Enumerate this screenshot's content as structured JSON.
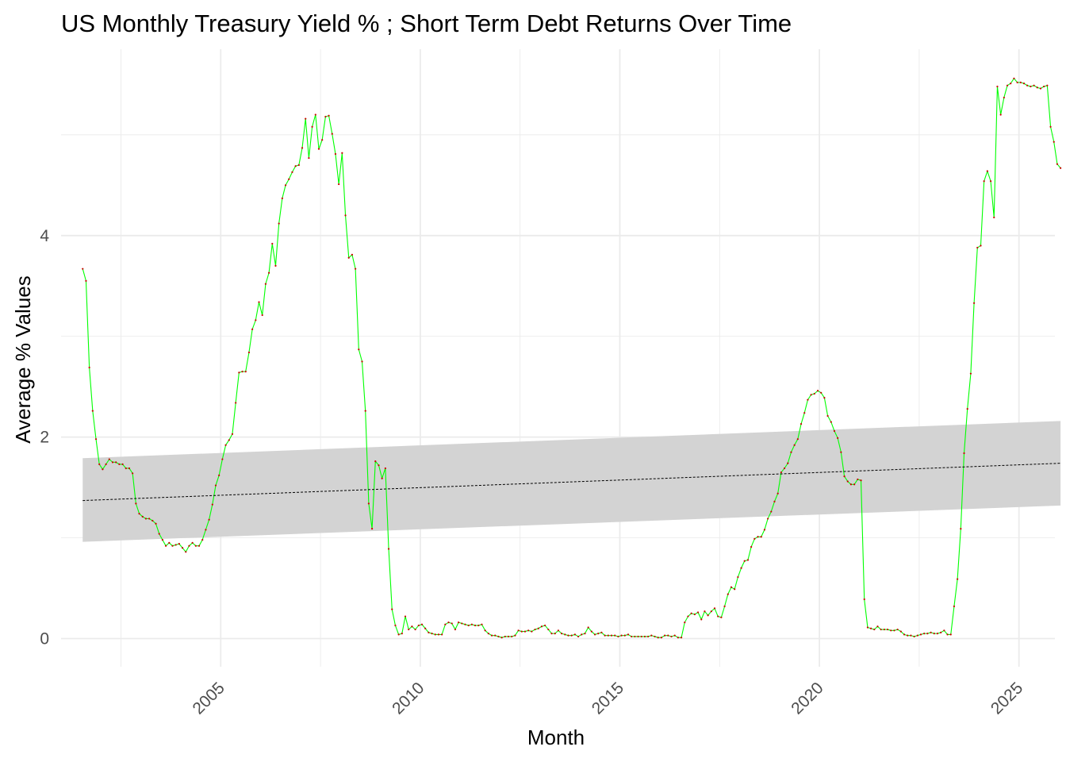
{
  "chart_data": {
    "type": "line",
    "title": "US Monthly Treasury Yield % ; Short Term Debt Returns Over Time",
    "xlabel": "Month",
    "ylabel": "Average % Values",
    "x_ticks": [
      "2005",
      "2010",
      "2015",
      "2020",
      "2025"
    ],
    "y_ticks": [
      "0",
      "2",
      "4"
    ],
    "xlim": [
      2001.0,
      2025.9
    ],
    "ylim": [
      -0.28,
      5.85
    ],
    "grid": true,
    "legend": "none",
    "colors": {
      "line": "#00ff00",
      "points": "#cc0000",
      "trend": "#000000",
      "band": "#d3d3d3",
      "grid": "#ebebeb"
    },
    "series": [
      {
        "start": "2001-07",
        "step": "month",
        "values": [
          3.67,
          3.55,
          2.69,
          2.26,
          1.98,
          1.73,
          1.68,
          1.73,
          1.78,
          1.75,
          1.75,
          1.73,
          1.73,
          1.69,
          1.69,
          1.64,
          1.34,
          1.24,
          1.21,
          1.19,
          1.19,
          1.17,
          1.14,
          1.04,
          0.98,
          0.92,
          0.95,
          0.92,
          0.93,
          0.94,
          0.9,
          0.86,
          0.92,
          0.95,
          0.92,
          0.92,
          0.98,
          1.08,
          1.18,
          1.33,
          1.52,
          1.62,
          1.78,
          1.92,
          1.97,
          2.03,
          2.34,
          2.64,
          2.65,
          2.65,
          2.84,
          3.07,
          3.16,
          3.34,
          3.21,
          3.52,
          3.63,
          3.92,
          3.7,
          4.12,
          4.37,
          4.5,
          4.56,
          4.63,
          4.69,
          4.7,
          4.87,
          5.16,
          4.77,
          5.08,
          5.2,
          4.86,
          4.95,
          5.18,
          5.19,
          5.01,
          4.81,
          4.51,
          4.82,
          4.2,
          3.78,
          3.81,
          3.67,
          2.87,
          2.75,
          2.26,
          1.34,
          1.09,
          1.76,
          1.72,
          1.59,
          1.69,
          0.89,
          0.29,
          0.13,
          0.04,
          0.05,
          0.22,
          0.09,
          0.12,
          0.09,
          0.13,
          0.14,
          0.1,
          0.06,
          0.05,
          0.04,
          0.04,
          0.04,
          0.14,
          0.16,
          0.15,
          0.09,
          0.16,
          0.15,
          0.14,
          0.13,
          0.14,
          0.13,
          0.13,
          0.14,
          0.08,
          0.05,
          0.03,
          0.03,
          0.02,
          0.01,
          0.02,
          0.02,
          0.02,
          0.03,
          0.08,
          0.07,
          0.07,
          0.08,
          0.07,
          0.09,
          0.1,
          0.12,
          0.13,
          0.09,
          0.05,
          0.05,
          0.08,
          0.05,
          0.04,
          0.03,
          0.03,
          0.04,
          0.02,
          0.04,
          0.05,
          0.11,
          0.07,
          0.04,
          0.05,
          0.06,
          0.03,
          0.03,
          0.03,
          0.03,
          0.02,
          0.03,
          0.03,
          0.04,
          0.02,
          0.02,
          0.02,
          0.02,
          0.02,
          0.02,
          0.03,
          0.02,
          0.01,
          0.01,
          0.03,
          0.03,
          0.02,
          0.03,
          0.01,
          0.01,
          0.16,
          0.22,
          0.25,
          0.24,
          0.26,
          0.19,
          0.27,
          0.23,
          0.27,
          0.3,
          0.22,
          0.21,
          0.32,
          0.44,
          0.51,
          0.49,
          0.61,
          0.7,
          0.77,
          0.78,
          0.91,
          0.99,
          1.01,
          1.01,
          1.08,
          1.19,
          1.26,
          1.36,
          1.44,
          1.65,
          1.69,
          1.74,
          1.85,
          1.92,
          1.98,
          2.13,
          2.24,
          2.37,
          2.42,
          2.43,
          2.46,
          2.44,
          2.39,
          2.21,
          2.15,
          2.06,
          1.99,
          1.85,
          1.61,
          1.56,
          1.53,
          1.53,
          1.58,
          1.57,
          0.39,
          0.11,
          0.1,
          0.09,
          0.12,
          0.09,
          0.09,
          0.09,
          0.08,
          0.08,
          0.09,
          0.07,
          0.04,
          0.03,
          0.03,
          0.02,
          0.03,
          0.04,
          0.05,
          0.05,
          0.06,
          0.05,
          0.05,
          0.06,
          0.08,
          0.04,
          0.04,
          0.32,
          0.59,
          1.09,
          1.84,
          2.28,
          2.63,
          3.33,
          3.88,
          3.9,
          4.54,
          4.64,
          4.54,
          4.18,
          5.48,
          5.2,
          5.37,
          5.49,
          5.51,
          5.56,
          5.52,
          5.52,
          5.51,
          5.49,
          5.48,
          5.49,
          5.47,
          5.46,
          5.48,
          5.49,
          5.08,
          4.93,
          4.71,
          4.67
        ]
      }
    ],
    "trend": {
      "method": "lm",
      "start_value": 1.37,
      "end_value": 1.74,
      "band_start": [
        0.96,
        1.79
      ],
      "band_end": [
        1.32,
        2.16
      ]
    }
  }
}
